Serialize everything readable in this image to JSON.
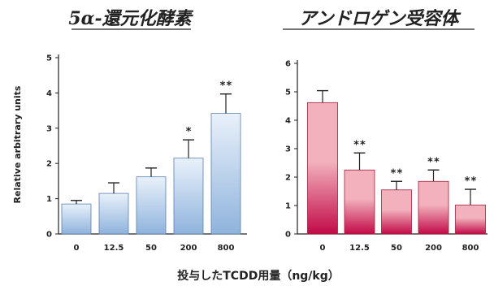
{
  "chart_data": [
    {
      "type": "bar",
      "title": "5α-還元化酵素",
      "ylabel": "Relative arbitrary units",
      "categories": [
        "0",
        "12.5",
        "50",
        "200",
        "800"
      ],
      "values": [
        0.85,
        1.15,
        1.62,
        2.15,
        3.42
      ],
      "errors": [
        0.1,
        0.3,
        0.25,
        0.52,
        0.55
      ],
      "significance": [
        "",
        "",
        "",
        "*",
        "**"
      ],
      "ylim": [
        0,
        5
      ],
      "yticks": [
        0,
        1,
        2,
        3,
        4,
        5
      ],
      "colors": {
        "bar_top": "#e9f1fa",
        "bar_bottom": "#8fb3dc",
        "bar_edge": "#5a7fb0"
      }
    },
    {
      "type": "bar",
      "title": "アンドロゲン受容体",
      "categories": [
        "0",
        "12.5",
        "50",
        "200",
        "800"
      ],
      "values": [
        4.62,
        2.25,
        1.55,
        1.85,
        1.02
      ],
      "errors": [
        0.42,
        0.6,
        0.3,
        0.4,
        0.55
      ],
      "significance": [
        "",
        "**",
        "**",
        "**",
        "**"
      ],
      "ylim": [
        0,
        6
      ],
      "yticks": [
        0,
        1,
        2,
        3,
        4,
        5,
        6
      ],
      "colors": {
        "bar_top": "#f2b1bd",
        "bar_bottom": "#c20a48",
        "bar_edge": "#a0203a"
      }
    }
  ],
  "xlabel": "投与したTCDD用量（ng/kg）"
}
